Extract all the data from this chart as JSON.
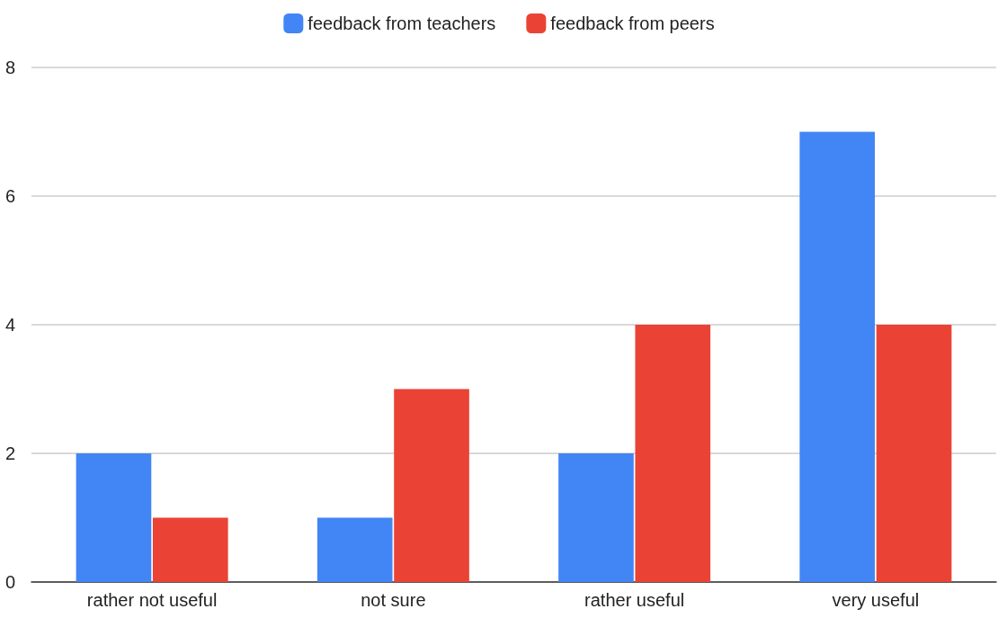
{
  "chart_data": {
    "type": "bar",
    "categories": [
      "rather not useful",
      "not sure",
      "rather useful",
      "very useful"
    ],
    "series": [
      {
        "name": "feedback from teachers",
        "color": "#4285f4",
        "values": [
          2,
          1,
          2,
          7
        ]
      },
      {
        "name": "feedback from peers",
        "color": "#ea4335",
        "values": [
          1,
          3,
          4,
          4
        ]
      }
    ],
    "ylim": [
      0,
      8
    ],
    "yticks": [
      0,
      2,
      4,
      6,
      8
    ],
    "grid": "y",
    "legend": "top"
  }
}
